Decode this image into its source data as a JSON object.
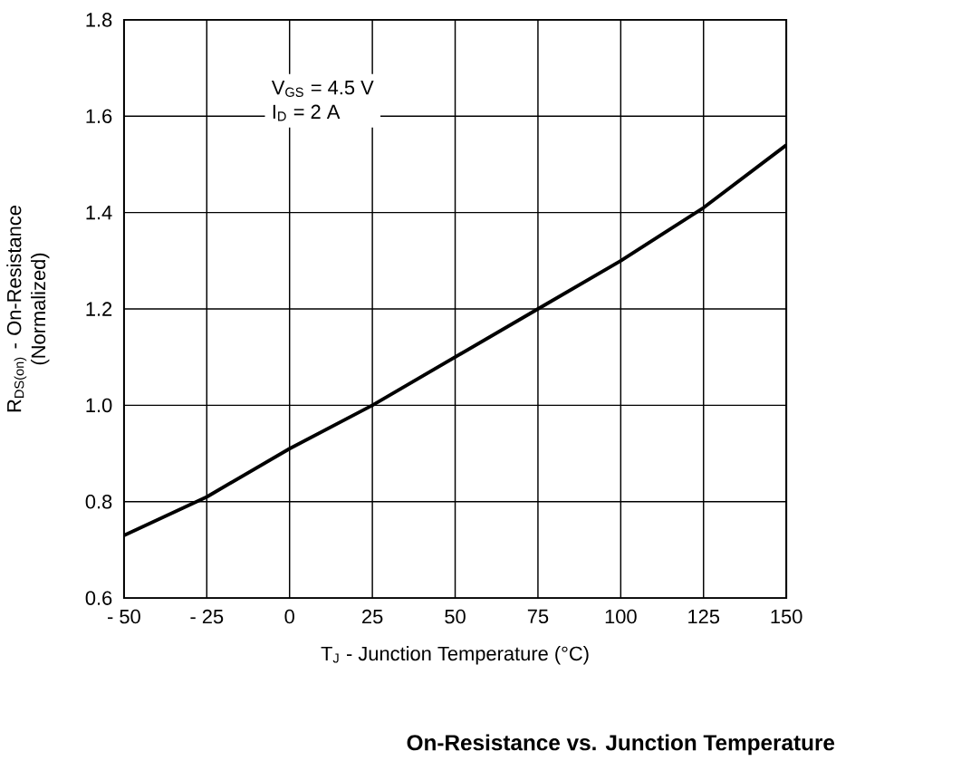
{
  "chart_data": {
    "type": "line",
    "title": "On-Resistance vs. Junction Temperature",
    "xlabel": "T$_{J}$ - Junction Temperature (°C)",
    "ylabel": "R$_{DS(on)}$ - On-Resistance (Normalized)",
    "annotations": [
      "V$_{GS}$ = 4.5 V",
      "I$_{D}$ = 2 A"
    ],
    "x": [
      -50,
      -25,
      0,
      25,
      50,
      75,
      100,
      125,
      150
    ],
    "series": [
      {
        "color": "#000000",
        "values": [
          0.73,
          0.81,
          0.91,
          1.0,
          1.1,
          1.2,
          1.3,
          1.41,
          1.54
        ]
      }
    ],
    "xlim": [
      -50,
      150
    ],
    "ylim": [
      0.6,
      1.8
    ],
    "xticks": [
      {
        "value": -50,
        "label": "- 50"
      },
      {
        "value": -25,
        "label": "- 25"
      },
      {
        "value": 0,
        "label": "0"
      },
      {
        "value": 25,
        "label": "25"
      },
      {
        "value": 50,
        "label": "50"
      },
      {
        "value": 75,
        "label": "75"
      },
      {
        "value": 100,
        "label": "100"
      },
      {
        "value": 125,
        "label": "125"
      },
      {
        "value": 150,
        "label": "150"
      }
    ],
    "yticks": [
      {
        "value": 0.6,
        "label": "0.6"
      },
      {
        "value": 0.8,
        "label": "0.8"
      },
      {
        "value": 1.0,
        "label": "1.0"
      },
      {
        "value": 1.2,
        "label": "1.2"
      },
      {
        "value": 1.4,
        "label": "1.4"
      },
      {
        "value": 1.6,
        "label": "1.6"
      },
      {
        "value": 1.8,
        "label": "1.8"
      }
    ],
    "grid": true
  }
}
